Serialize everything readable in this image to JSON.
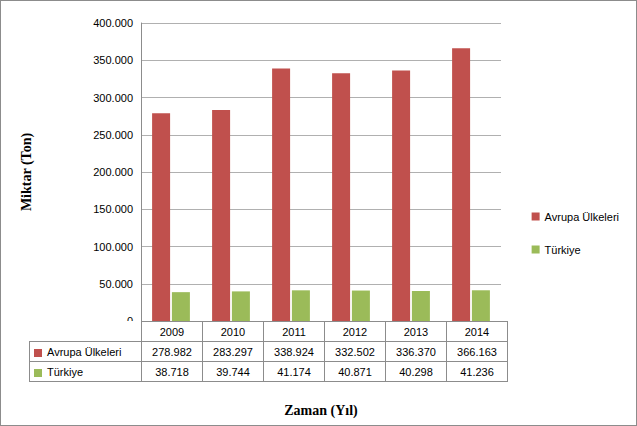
{
  "chart_data": {
    "type": "bar",
    "x_label": "Zaman (Yıl)",
    "y_label": "Miktar (Ton)",
    "categories": [
      "2009",
      "2010",
      "2011",
      "2012",
      "2013",
      "2014"
    ],
    "series": [
      {
        "name": "Avrupa Ülkeleri",
        "color": "#c0504d",
        "values": [
          278982,
          283297,
          338924,
          332502,
          336370,
          366163
        ],
        "value_labels": [
          "278.982",
          "283.297",
          "338.924",
          "332.502",
          "336.370",
          "366.163"
        ]
      },
      {
        "name": "Türkiye",
        "color": "#9bbb59",
        "values": [
          38718,
          39744,
          41174,
          40871,
          40298,
          41236
        ],
        "value_labels": [
          "38.718",
          "39.744",
          "41.174",
          "40.871",
          "40.298",
          "41.236"
        ]
      }
    ],
    "ylim": [
      0,
      400000
    ],
    "yticks": [
      0,
      {
        "value": 50000,
        "label": "50.000"
      },
      {
        "value": 100000,
        "label": "100.000"
      },
      {
        "value": 150000,
        "label": "150.000"
      },
      {
        "value": 200000,
        "label": "200.000"
      },
      {
        "value": 250000,
        "label": "250.000"
      },
      {
        "value": 300000,
        "label": "300.000"
      },
      {
        "value": 350000,
        "label": "350.000"
      },
      {
        "value": 400000,
        "label": "400.000"
      }
    ],
    "grid": true,
    "legend": "right"
  }
}
